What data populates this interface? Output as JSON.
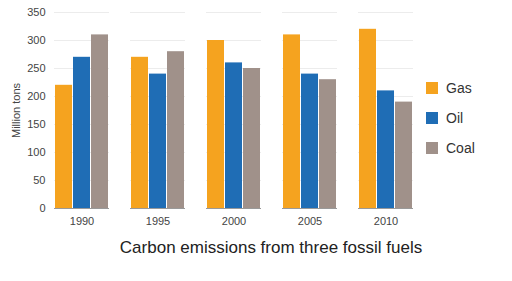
{
  "chart_data": {
    "type": "bar",
    "title": "Carbon emissions from three fossil fuels",
    "ylabel": "Million tons",
    "categories": [
      "1990",
      "1995",
      "2000",
      "2005",
      "2010"
    ],
    "series": [
      {
        "name": "Gas",
        "color": "#f5a31f",
        "values": [
          220,
          270,
          300,
          310,
          320
        ]
      },
      {
        "name": "Oil",
        "color": "#1f6db5",
        "values": [
          270,
          240,
          260,
          240,
          210
        ]
      },
      {
        "name": "Coal",
        "color": "#a0918a",
        "values": [
          310,
          280,
          250,
          230,
          190
        ]
      }
    ],
    "ylim": [
      0,
      350
    ],
    "yticks": [
      0,
      50,
      100,
      150,
      200,
      250,
      300,
      350
    ],
    "grid": true,
    "legend": "right"
  }
}
